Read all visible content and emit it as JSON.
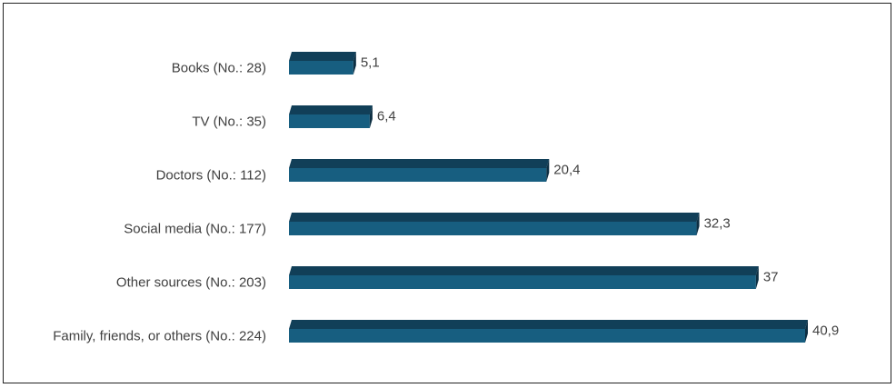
{
  "chart_data": {
    "type": "bar",
    "orientation": "horizontal",
    "categories": [
      "Books (No.: 28)",
      "TV (No.: 35)",
      "Doctors (No.: 112)",
      "Social media (No.: 177)",
      "Other sources (No.: 203)",
      "Family, friends, or others (No.: 224)"
    ],
    "values": [
      5.1,
      6.4,
      20.4,
      32.3,
      37,
      40.9
    ],
    "value_labels": [
      "5,1",
      "6,4",
      "20,4",
      "32,3",
      "37",
      "40,9"
    ],
    "title": "",
    "xlabel": "",
    "ylabel": "",
    "xlim": [
      0,
      40.9
    ],
    "grid": false,
    "legend": "none",
    "style": "3d",
    "colors": {
      "bar_front": "#175e80",
      "bar_top": "#113f58",
      "bar_side": "#0c2e42",
      "text": "#404040",
      "border": "#222222"
    }
  }
}
